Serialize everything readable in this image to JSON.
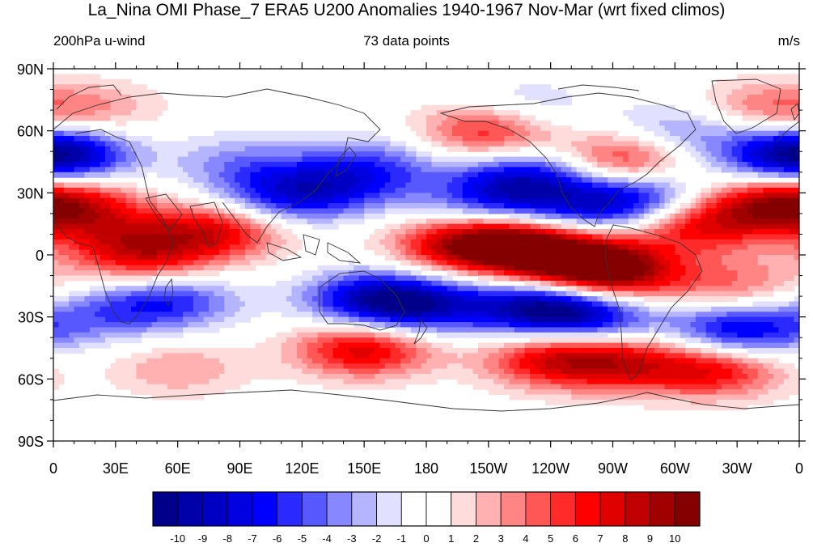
{
  "chart_data": {
    "type": "heatmap",
    "title": "La_Nina OMI Phase_7 ERA5 U200 Anomalies 1940-1967 Nov-Mar (wrt fixed climos)",
    "left_label": "200hPa u-wind",
    "center_label": "73 data points",
    "units": "m/s",
    "x_ticks": [
      "0",
      "30E",
      "60E",
      "90E",
      "120E",
      "150E",
      "180",
      "150W",
      "120W",
      "90W",
      "60W",
      "30W",
      "0"
    ],
    "y_ticks": [
      "90N",
      "60N",
      "30N",
      "0",
      "30S",
      "60S",
      "90S"
    ],
    "x_range_deg_east": [
      0,
      360
    ],
    "y_range_deg": [
      -90,
      90
    ],
    "colorbar": {
      "labels": [
        "-10",
        "-9",
        "-8",
        "-7",
        "-6",
        "-5",
        "-4",
        "-3",
        "-2",
        "-1",
        "0",
        "1",
        "2",
        "3",
        "4",
        "5",
        "6",
        "7",
        "8",
        "9",
        "10"
      ],
      "colors": [
        "#00008a",
        "#0000a8",
        "#0000c4",
        "#0000e0",
        "#0000ff",
        "#2a2aff",
        "#5858ff",
        "#8787ff",
        "#b4b4ff",
        "#e1e1ff",
        "#ffffff",
        "#ffffff",
        "#ffdcdc",
        "#ffb0b0",
        "#ff8484",
        "#ff5656",
        "#ff2a2a",
        "#ff0000",
        "#e00000",
        "#c00000",
        "#a00000",
        "#840000"
      ]
    },
    "anomaly_centers": [
      {
        "lon": 140,
        "lat": 35,
        "value": -5
      },
      {
        "lon": 110,
        "lat": 28,
        "value": -6
      },
      {
        "lon": 5,
        "lat": 48,
        "value": -6
      },
      {
        "lon": 355,
        "lat": 48,
        "value": -6
      },
      {
        "lon": 230,
        "lat": 38,
        "value": -7
      },
      {
        "lon": 210,
        "lat": 25,
        "value": -5
      },
      {
        "lon": 285,
        "lat": 28,
        "value": -7
      },
      {
        "lon": 255,
        "lat": 22,
        "value": -5
      },
      {
        "lon": 305,
        "lat": 60,
        "value": -4
      },
      {
        "lon": 225,
        "lat": 70,
        "value": -3
      },
      {
        "lon": 90,
        "lat": 45,
        "value": -3
      },
      {
        "lon": 160,
        "lat": 45,
        "value": -3
      },
      {
        "lon": 155,
        "lat": -22,
        "value": -8
      },
      {
        "lon": 180,
        "lat": -25,
        "value": -6
      },
      {
        "lon": 235,
        "lat": -25,
        "value": -9
      },
      {
        "lon": 260,
        "lat": -30,
        "value": -6
      },
      {
        "lon": 55,
        "lat": -22,
        "value": -6
      },
      {
        "lon": 330,
        "lat": -37,
        "value": -8
      },
      {
        "lon": 20,
        "lat": -30,
        "value": -3
      },
      {
        "lon": 8,
        "lat": 25,
        "value": 6
      },
      {
        "lon": 80,
        "lat": 12,
        "value": 7
      },
      {
        "lon": 45,
        "lat": -2,
        "value": 6
      },
      {
        "lon": 30,
        "lat": 10,
        "value": 4
      },
      {
        "lon": 195,
        "lat": 5,
        "value": 7
      },
      {
        "lon": 225,
        "lat": 5,
        "value": 10
      },
      {
        "lon": 255,
        "lat": -5,
        "value": 10
      },
      {
        "lon": 275,
        "lat": -10,
        "value": 6
      },
      {
        "lon": 310,
        "lat": 15,
        "value": 7
      },
      {
        "lon": 345,
        "lat": 25,
        "value": 6
      },
      {
        "lon": 275,
        "lat": 45,
        "value": 7
      },
      {
        "lon": 210,
        "lat": 60,
        "value": 7
      },
      {
        "lon": 340,
        "lat": 70,
        "value": 4
      },
      {
        "lon": 20,
        "lat": 70,
        "value": 3
      },
      {
        "lon": 150,
        "lat": -45,
        "value": 8
      },
      {
        "lon": 240,
        "lat": -50,
        "value": 7
      },
      {
        "lon": 320,
        "lat": -55,
        "value": 7
      },
      {
        "lon": 275,
        "lat": -52,
        "value": 6
      },
      {
        "lon": 330,
        "lat": -15,
        "value": 4
      },
      {
        "lon": 60,
        "lat": -55,
        "value": 3
      }
    ]
  }
}
